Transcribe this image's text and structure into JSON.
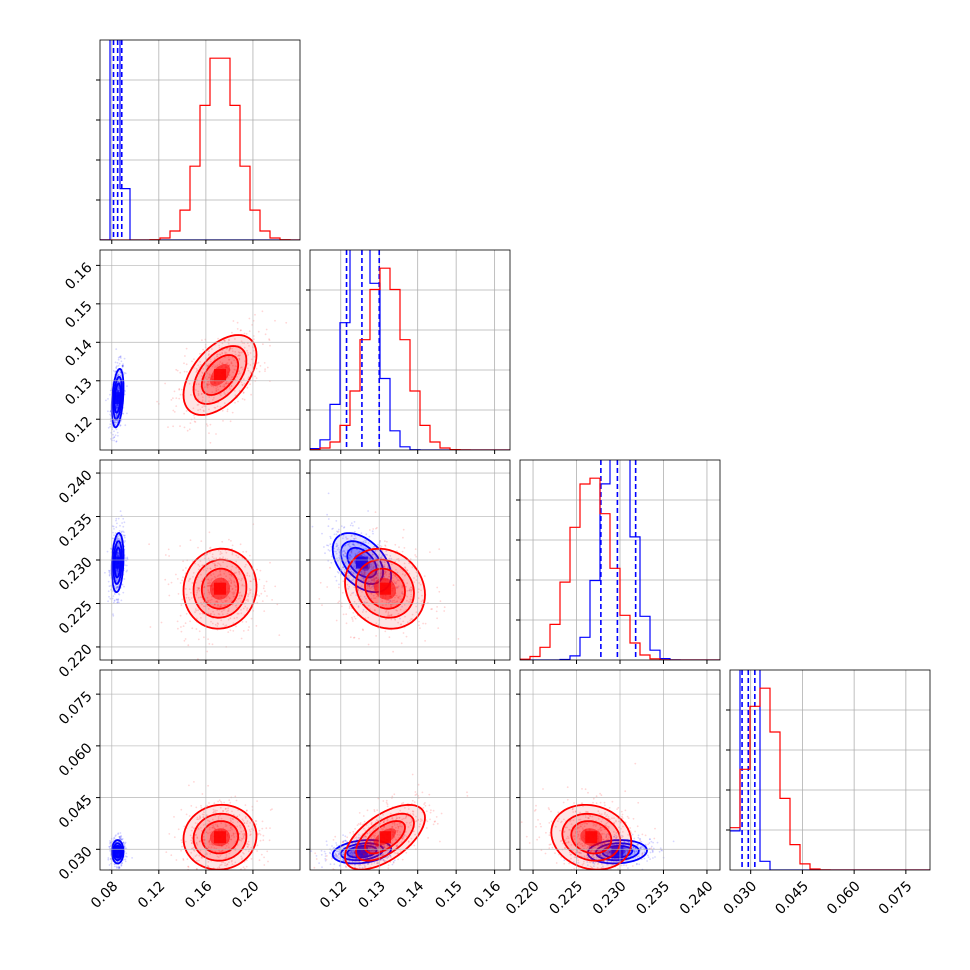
{
  "chart_data": {
    "type": "corner",
    "parameters": [
      {
        "range": [
          0.07,
          0.24
        ],
        "ticks": [
          0.08,
          0.12,
          0.16,
          0.2
        ],
        "tick_labels": [
          "0.08",
          "0.12",
          "0.16",
          "0.20"
        ]
      },
      {
        "range": [
          0.112,
          0.164
        ],
        "ticks": [
          0.12,
          0.13,
          0.14,
          0.15,
          0.16
        ],
        "tick_labels": [
          "0.12",
          "0.13",
          "0.14",
          "0.15",
          "0.16"
        ]
      },
      {
        "range": [
          0.2185,
          0.2415
        ],
        "ticks": [
          0.22,
          0.225,
          0.23,
          0.235,
          0.24
        ],
        "tick_labels": [
          "0.220",
          "0.225",
          "0.230",
          "0.235",
          "0.240"
        ]
      },
      {
        "range": [
          0.024,
          0.082
        ],
        "ticks": [
          0.03,
          0.045,
          0.06,
          0.075
        ],
        "tick_labels": [
          "0.030",
          "0.045",
          "0.060",
          "0.075"
        ]
      }
    ],
    "grid": true,
    "colors": {
      "blue": "#0000ff",
      "red": "#ff0000"
    },
    "series": [
      {
        "color": "#0000ff",
        "mean": [
          0.085,
          0.1255,
          0.2297,
          0.0293
        ],
        "std": [
          0.0025,
          0.0038,
          0.0017,
          0.0017
        ],
        "correlation": {
          "0-1": 0.35,
          "0-2": 0.2,
          "0-3": 0.0,
          "1-2": -0.45,
          "1-3": 0.25,
          "2-3": 0.1
        },
        "quantile_lines": [
          [
            0.0815,
            0.085,
            0.0885
          ],
          [
            0.1215,
            0.1255,
            0.13
          ],
          [
            0.2278,
            0.2297,
            0.2318
          ],
          [
            0.0275,
            0.0293,
            0.0312
          ]
        ]
      },
      {
        "color": "#ff0000",
        "mean": [
          0.172,
          0.1315,
          0.2267,
          0.0335
        ],
        "std": [
          0.0155,
          0.0052,
          0.0023,
          0.0047
        ],
        "correlation": {
          "0-1": 0.5,
          "0-2": 0.05,
          "0-3": 0.05,
          "1-2": -0.15,
          "1-3": 0.6,
          "2-3": -0.15
        }
      }
    ]
  }
}
